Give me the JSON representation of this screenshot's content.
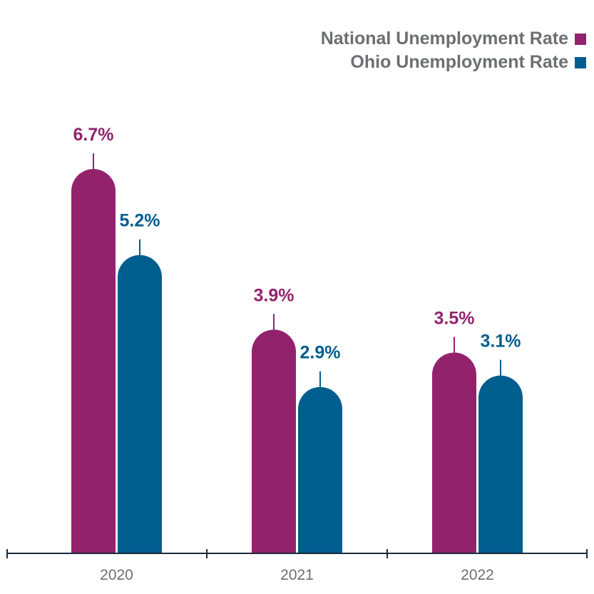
{
  "chart_data": {
    "type": "bar",
    "categories": [
      "2020",
      "2021",
      "2022"
    ],
    "series": [
      {
        "name": "National Unemployment Rate",
        "values": [
          6.7,
          3.9,
          3.5
        ],
        "labels": [
          "6.7%",
          "3.9%",
          "3.5%"
        ],
        "color": "#93226d"
      },
      {
        "name": "Ohio Unemployment Rate",
        "values": [
          5.2,
          2.9,
          3.1
        ],
        "labels": [
          "5.2%",
          "2.9%",
          "3.1%"
        ],
        "color": "#005e8f"
      }
    ],
    "ylim": [
      0,
      6.7
    ],
    "grid": false,
    "legend_position": "top-right",
    "axis_color": "#1b2a3c",
    "tick_label_color": "#6d6e71"
  }
}
